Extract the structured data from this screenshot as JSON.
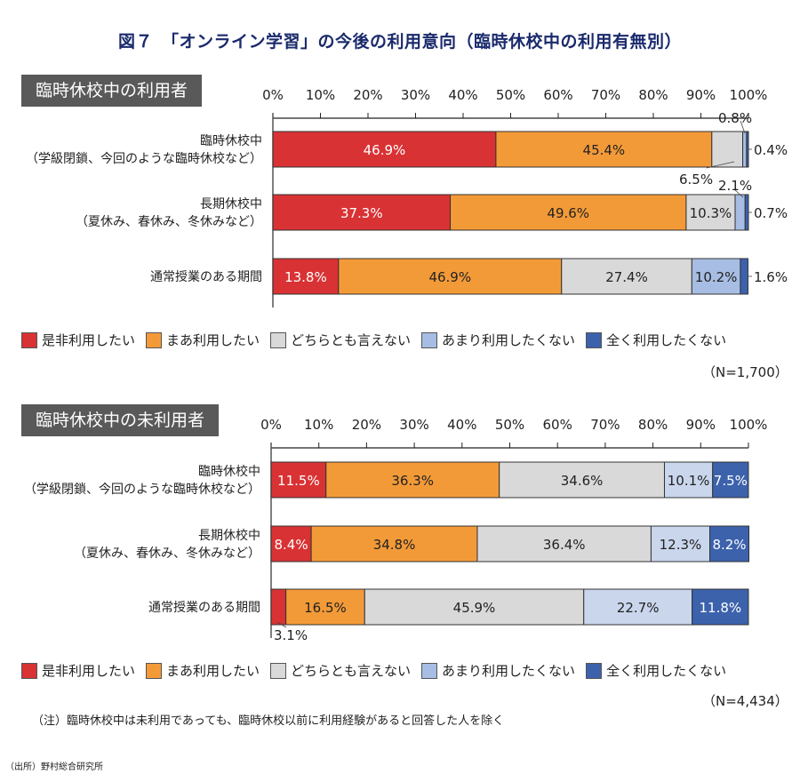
{
  "title": "図７　「オンライン学習」の今後の利用意向（臨時休校中の利用有無別）",
  "note": "（注）臨時休校中は未利用であっても、臨時休校以前に利用経験があると回答した人を除く",
  "source": "（出所）野村総合研究所",
  "colors": {
    "definitely": "#d93234",
    "somewhat": "#f39a38",
    "neutral": "#d9d9d9",
    "not_much": "#a7bde3",
    "not_much_pale": "#c9d6ec",
    "not_at_all": "#3c62ac",
    "title": "#1a2a6c",
    "panel_bg": "#595959"
  },
  "legend": [
    {
      "key": "definitely",
      "label": "是非利用したい"
    },
    {
      "key": "somewhat",
      "label": "まあ利用したい"
    },
    {
      "key": "neutral",
      "label": "どちらとも言えない"
    },
    {
      "key": "not_much",
      "label": "あまり利用したくない"
    },
    {
      "key": "not_at_all",
      "label": "全く利用したくない"
    }
  ],
  "chart_data": [
    {
      "type": "bar",
      "orientation": "horizontal-stacked-100",
      "title": "臨時休校中の利用者",
      "n_label": "（N=1,700）",
      "xlim": [
        0,
        100
      ],
      "x_ticks": [
        "0%",
        "10%",
        "20%",
        "30%",
        "40%",
        "50%",
        "60%",
        "70%",
        "80%",
        "90%",
        "100%"
      ],
      "categories": [
        [
          "臨時休校中",
          "（学級閉鎖、今回のような臨時休校など）"
        ],
        [
          "長期休校中",
          "（夏休み、春休み、冬休みなど）"
        ],
        [
          "通常授業のある期間"
        ]
      ],
      "series": [
        {
          "name": "是非利用したい",
          "key": "definitely",
          "values": [
            46.9,
            37.3,
            13.8
          ]
        },
        {
          "name": "まあ利用したい",
          "key": "somewhat",
          "values": [
            45.4,
            49.6,
            46.9
          ]
        },
        {
          "name": "どちらとも言えない",
          "key": "neutral",
          "values": [
            6.5,
            10.3,
            27.4
          ]
        },
        {
          "name": "あまり利用したくない",
          "key": "not_much",
          "values": [
            0.8,
            2.1,
            10.2
          ]
        },
        {
          "name": "全く利用したくない",
          "key": "not_at_all",
          "values": [
            0.4,
            0.7,
            1.6
          ]
        }
      ]
    },
    {
      "type": "bar",
      "orientation": "horizontal-stacked-100",
      "title": "臨時休校中の未利用者",
      "n_label": "（N=4,434）",
      "xlim": [
        0,
        100
      ],
      "x_ticks": [
        "0%",
        "10%",
        "20%",
        "30%",
        "40%",
        "50%",
        "60%",
        "70%",
        "80%",
        "90%",
        "100%"
      ],
      "categories": [
        [
          "臨時休校中",
          "（学級閉鎖、今回のような臨時休校など）"
        ],
        [
          "長期休校中",
          "（夏休み、春休み、冬休みなど）"
        ],
        [
          "通常授業のある期間"
        ]
      ],
      "series": [
        {
          "name": "是非利用したい",
          "key": "definitely",
          "values": [
            11.5,
            8.4,
            3.1
          ]
        },
        {
          "name": "まあ利用したい",
          "key": "somewhat",
          "values": [
            36.3,
            34.8,
            16.5
          ]
        },
        {
          "name": "どちらとも言えない",
          "key": "neutral",
          "values": [
            34.6,
            36.4,
            45.9
          ]
        },
        {
          "name": "あまり利用したくない",
          "key": "not_much",
          "values": [
            10.1,
            12.3,
            22.7
          ]
        },
        {
          "name": "全く利用したくない",
          "key": "not_at_all",
          "values": [
            7.5,
            8.2,
            11.8
          ]
        }
      ]
    }
  ]
}
